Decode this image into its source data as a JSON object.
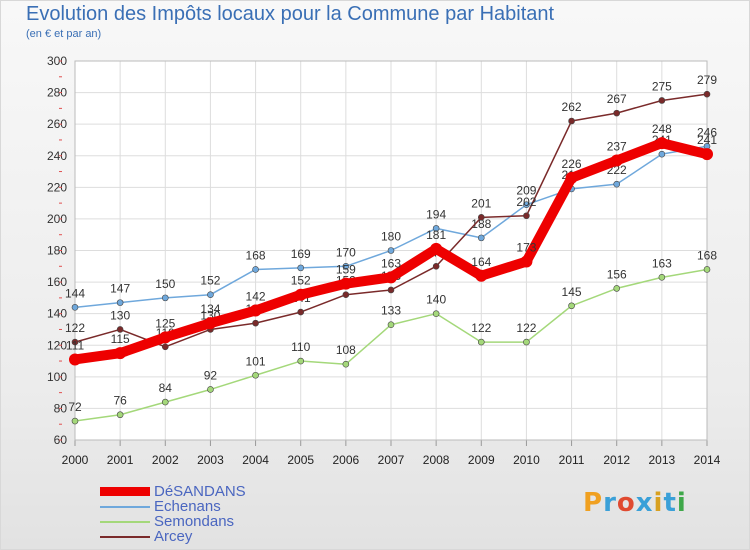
{
  "title": "Evolution des Impôts locaux pour la Commune par Habitant",
  "subtitle": "(en € et par an)",
  "brand": {
    "text": "Proxiti",
    "colors": [
      "#f0a020",
      "#3aa0d8",
      "#e04a30",
      "#3aa0d8",
      "#d8a020",
      "#3aa0d8",
      "#3fa84a"
    ]
  },
  "chart_data": {
    "type": "line",
    "title": "Evolution des Impôts locaux pour la Commune par Habitant",
    "subtitle": "(en € et par an)",
    "xlabel": "",
    "ylabel": "",
    "x": [
      "2000",
      "2001",
      "2002",
      "2003",
      "2004",
      "2005",
      "2006",
      "2007",
      "2008",
      "2009",
      "2010",
      "2011",
      "2012",
      "2013",
      "2014"
    ],
    "ylim": [
      60,
      300
    ],
    "yticks": [
      60,
      80,
      100,
      120,
      140,
      160,
      180,
      200,
      220,
      240,
      260,
      280,
      300
    ],
    "grid": true,
    "legend_position": "bottom-left",
    "series": [
      {
        "name": "Echenans",
        "color": "#6fa8dc",
        "values": [
          144,
          147,
          150,
          152,
          168,
          169,
          170,
          180,
          194,
          188,
          209,
          219,
          222,
          241,
          246
        ]
      },
      {
        "name": "Semondans",
        "color": "#a4d87a",
        "values": [
          72,
          76,
          84,
          92,
          101,
          110,
          108,
          133,
          140,
          122,
          122,
          145,
          156,
          163,
          168
        ]
      },
      {
        "name": "Arcey",
        "color": "#7a2a2a",
        "values": [
          122,
          130,
          119,
          130,
          134,
          141,
          152,
          155,
          170,
          201,
          202,
          262,
          267,
          275,
          279
        ]
      },
      {
        "name": "DéSANDANS",
        "color": "#ee0000",
        "values": [
          111,
          115,
          125,
          134,
          142,
          152,
          159,
          163,
          181,
          164,
          173,
          226,
          237,
          248,
          241
        ]
      }
    ],
    "legend_order": [
      "DéSANDANS",
      "Echenans",
      "Semondans",
      "Arcey"
    ]
  }
}
